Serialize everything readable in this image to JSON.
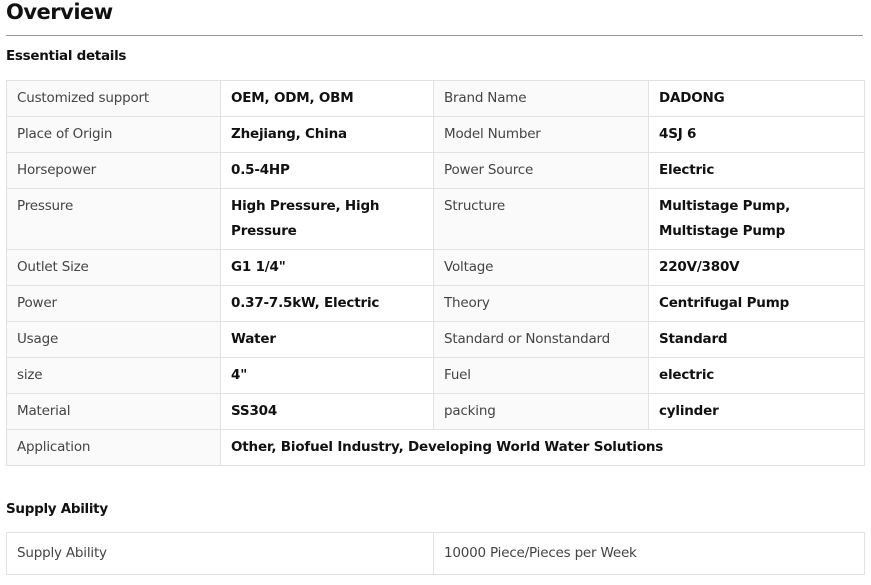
{
  "title": "Overview",
  "essential": {
    "heading": "Essential details",
    "rows": [
      [
        "Customized support",
        "OEM, ODM, OBM",
        "Brand Name",
        "DADONG"
      ],
      [
        "Place of Origin",
        "Zhejiang, China",
        "Model Number",
        "4SJ 6"
      ],
      [
        "Horsepower",
        "0.5-4HP",
        "Power Source",
        "Electric"
      ],
      [
        "Pressure",
        "High Pressure, High Pressure",
        "Structure",
        "Multistage Pump, Multistage Pump"
      ],
      [
        "Outlet Size",
        "G1 1/4\"",
        "Voltage",
        "220V/380V"
      ],
      [
        "Power",
        "0.37-7.5kW, Electric",
        "Theory",
        "Centrifugal Pump"
      ],
      [
        "Usage",
        "Water",
        "Standard or Nonstandard",
        "Standard"
      ],
      [
        "size",
        "4\"",
        "Fuel",
        "electric"
      ],
      [
        "Material",
        "SS304",
        "packing",
        "cylinder"
      ]
    ],
    "application": {
      "label": "Application",
      "value": "Other, Biofuel Industry, Developing World Water Solutions"
    }
  },
  "supply": {
    "heading": "Supply Ability",
    "label": "Supply Ability",
    "value": "10000 Piece/Pieces per Week"
  }
}
